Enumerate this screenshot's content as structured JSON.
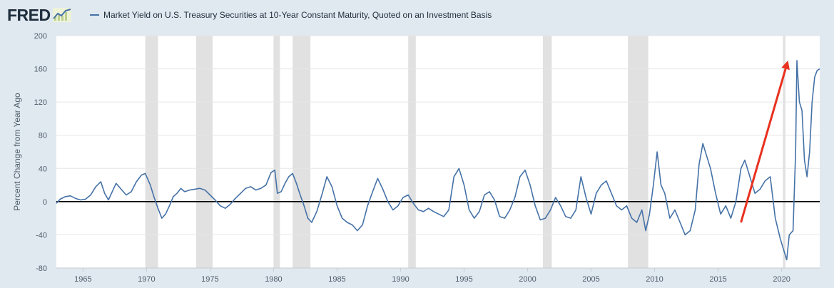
{
  "logo": {
    "text": "FRED"
  },
  "chart_data": {
    "type": "line",
    "title": "Market Yield on U.S. Treasury Securities at 10-Year Constant Maturity, Quoted on an Investment Basis",
    "xlabel": "",
    "ylabel": "Percent Change from Year Ago",
    "xlim": [
      1962.9,
      2023.0
    ],
    "ylim": [
      -80,
      200
    ],
    "grid": true,
    "legend": "top-left",
    "series_color": "#4572a7",
    "recession_color": "#e1e1e1",
    "arrow_color": "#e8321f",
    "y_ticks": [
      -80,
      -40,
      0,
      40,
      80,
      120,
      160,
      200
    ],
    "y_tick_labels": [
      "-80",
      "-40",
      "0",
      "40",
      "80",
      "120",
      "160",
      "200"
    ],
    "x_ticks": [
      1965,
      1970,
      1975,
      1980,
      1985,
      1990,
      1995,
      2000,
      2005,
      2010,
      2015,
      2020
    ],
    "x_tick_labels": [
      "1965",
      "1970",
      "1975",
      "1980",
      "1985",
      "1990",
      "1995",
      "2000",
      "2005",
      "2010",
      "2015",
      "2020"
    ],
    "recessions": [
      [
        1969.9,
        1970.9
      ],
      [
        1973.9,
        1975.2
      ],
      [
        1980.0,
        1980.5
      ],
      [
        1981.5,
        1982.9
      ],
      [
        1990.6,
        1991.2
      ],
      [
        2001.2,
        2001.9
      ],
      [
        2007.9,
        2009.5
      ],
      [
        2020.1,
        2020.3
      ]
    ],
    "annotation": {
      "type": "arrow",
      "from": [
        2016.8,
        -25
      ],
      "to": [
        2020.5,
        170
      ]
    },
    "series": [
      {
        "name": "Market Yield on U.S. Treasury Securities at 10-Year Constant Maturity, Quoted on an Investment Basis",
        "x": [
          1962.9,
          1963.2,
          1963.6,
          1964.0,
          1964.4,
          1964.8,
          1965.2,
          1965.6,
          1966.0,
          1966.4,
          1966.7,
          1967.0,
          1967.3,
          1967.6,
          1968.0,
          1968.4,
          1968.8,
          1969.2,
          1969.6,
          1969.9,
          1970.3,
          1970.6,
          1970.9,
          1971.2,
          1971.5,
          1971.8,
          1972.1,
          1972.4,
          1972.7,
          1973.0,
          1973.4,
          1973.8,
          1974.2,
          1974.6,
          1975.0,
          1975.4,
          1975.8,
          1976.2,
          1976.6,
          1977.0,
          1977.4,
          1977.8,
          1978.2,
          1978.6,
          1979.0,
          1979.4,
          1979.8,
          1980.1,
          1980.3,
          1980.6,
          1980.9,
          1981.2,
          1981.5,
          1981.8,
          1982.1,
          1982.4,
          1982.7,
          1983.0,
          1983.4,
          1983.8,
          1984.2,
          1984.6,
          1985.0,
          1985.4,
          1985.8,
          1986.2,
          1986.6,
          1987.0,
          1987.4,
          1987.8,
          1988.2,
          1988.6,
          1989.0,
          1989.4,
          1989.8,
          1990.2,
          1990.6,
          1991.0,
          1991.4,
          1991.8,
          1992.2,
          1992.6,
          1993.0,
          1993.4,
          1993.8,
          1994.2,
          1994.6,
          1995.0,
          1995.4,
          1995.8,
          1996.2,
          1996.6,
          1997.0,
          1997.4,
          1997.8,
          1998.2,
          1998.6,
          1999.0,
          1999.4,
          1999.8,
          2000.2,
          2000.6,
          2001.0,
          2001.4,
          2001.8,
          2002.2,
          2002.6,
          2003.0,
          2003.4,
          2003.8,
          2004.2,
          2004.6,
          2005.0,
          2005.4,
          2005.8,
          2006.2,
          2006.6,
          2007.0,
          2007.4,
          2007.8,
          2008.2,
          2008.6,
          2009.0,
          2009.3,
          2009.6,
          2009.9,
          2010.2,
          2010.5,
          2010.8,
          2011.2,
          2011.6,
          2012.0,
          2012.4,
          2012.8,
          2013.2,
          2013.5,
          2013.8,
          2014.1,
          2014.4,
          2014.8,
          2015.2,
          2015.6,
          2016.0,
          2016.4,
          2016.8,
          2017.1,
          2017.5,
          2017.9,
          2018.3,
          2018.7,
          2019.1,
          2019.5,
          2019.9,
          2020.2,
          2020.4,
          2020.6,
          2020.9,
          2021.1,
          2021.2,
          2021.4,
          2021.6,
          2021.8,
          2022.0,
          2022.2,
          2022.4,
          2022.6,
          2022.8,
          2023.0
        ],
        "values": [
          -2,
          3,
          6,
          7,
          4,
          2,
          3,
          8,
          18,
          24,
          10,
          2,
          12,
          22,
          15,
          8,
          12,
          24,
          32,
          34,
          20,
          5,
          -8,
          -20,
          -15,
          -5,
          6,
          10,
          16,
          12,
          14,
          15,
          16,
          14,
          8,
          2,
          -5,
          -8,
          -3,
          4,
          10,
          16,
          18,
          14,
          16,
          20,
          35,
          38,
          10,
          12,
          22,
          30,
          34,
          22,
          8,
          -5,
          -20,
          -25,
          -12,
          8,
          30,
          18,
          -5,
          -20,
          -25,
          -28,
          -35,
          -28,
          -5,
          12,
          28,
          15,
          0,
          -10,
          -5,
          5,
          8,
          -2,
          -10,
          -12,
          -8,
          -12,
          -15,
          -18,
          -10,
          30,
          40,
          20,
          -10,
          -20,
          -12,
          8,
          12,
          2,
          -18,
          -20,
          -10,
          5,
          30,
          38,
          20,
          -5,
          -22,
          -20,
          -10,
          5,
          -5,
          -18,
          -20,
          -10,
          30,
          5,
          -15,
          10,
          20,
          25,
          10,
          -5,
          -10,
          -5,
          -20,
          -25,
          -10,
          -35,
          -15,
          20,
          60,
          20,
          10,
          -20,
          -10,
          -25,
          -40,
          -35,
          -10,
          45,
          70,
          55,
          40,
          10,
          -15,
          -5,
          -20,
          0,
          40,
          50,
          30,
          10,
          15,
          25,
          30,
          -20,
          -45,
          -60,
          -70,
          -40,
          -35,
          60,
          170,
          120,
          110,
          50,
          30,
          60,
          120,
          150,
          158,
          160
        ]
      }
    ]
  }
}
